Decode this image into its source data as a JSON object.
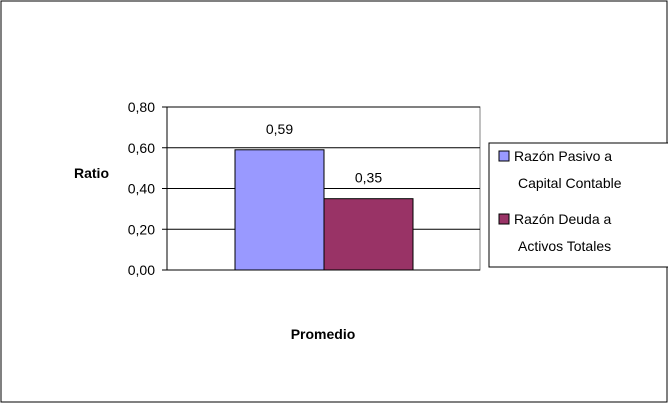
{
  "chart_data": {
    "type": "bar",
    "title": "",
    "xlabel": "Promedio",
    "ylabel": "Ratio",
    "ylim": [
      0,
      0.8
    ],
    "yticks": [
      0,
      0.2,
      0.4,
      0.6,
      0.8
    ],
    "yticks_labels": [
      "0,00",
      "0,20",
      "0,40",
      "0,60",
      "0,80"
    ],
    "categories": [
      "Promedio"
    ],
    "grid": true,
    "legend_position": "right",
    "series": [
      {
        "name": "Razón Pasivo a Capital Contable",
        "name_lines": [
          "Razón Pasivo a",
          "Capital Contable"
        ],
        "values": [
          0.59
        ],
        "value_label": "0,59",
        "color": "#9999ff"
      },
      {
        "name": "Razón Deuda a Activos Totales",
        "name_lines": [
          "Razón Deuda a",
          "Activos Totales"
        ],
        "values": [
          0.35
        ],
        "value_label": "0,35",
        "color": "#993366"
      }
    ]
  }
}
